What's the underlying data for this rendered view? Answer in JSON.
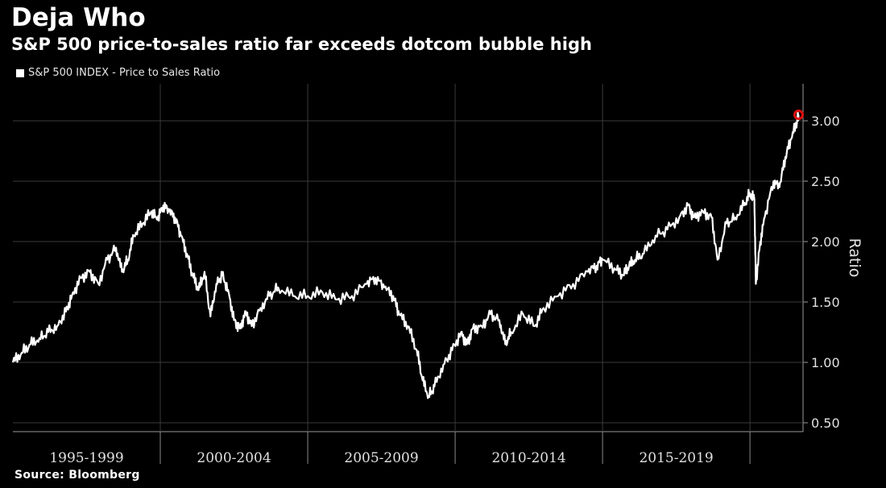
{
  "header": {
    "title": "Deja Who",
    "subtitle": "S&P 500 price-to-sales ratio far exceeds dotcom bubble high"
  },
  "legend": {
    "label": "S&P 500 INDEX - Price to Sales Ratio"
  },
  "footer": {
    "source": "Source: Bloomberg"
  },
  "colors": {
    "background": "#000000",
    "line": "#ffffff",
    "highlight": "#e01010",
    "grid": "#3a3a3a"
  },
  "chart_data": {
    "type": "line",
    "title": "Deja Who",
    "subtitle": "S&P 500 price-to-sales ratio far exceeds dotcom bubble high",
    "ylabel": "Ratio",
    "xlabel": "",
    "x_categories": [
      "1995-1999",
      "2000-2004",
      "2005-2009",
      "2010-2014",
      "2015-2019"
    ],
    "y_ticks": [
      "0.50",
      "1.00",
      "1.50",
      "2.00",
      "2.50",
      "3.00"
    ],
    "ylim": [
      0.5,
      3.3
    ],
    "xlim": [
      1995.0,
      2021.8
    ],
    "y_axis_position": "right",
    "grid": true,
    "legend_position": "top-left",
    "series": [
      {
        "name": "S&P 500 INDEX - Price to Sales Ratio",
        "x": [
          1995.0,
          1995.3,
          1995.6,
          1995.9,
          1996.2,
          1996.5,
          1996.8,
          1997.0,
          1997.3,
          1997.6,
          1997.9,
          1998.2,
          1998.5,
          1998.7,
          1998.9,
          1999.1,
          1999.4,
          1999.7,
          1999.9,
          2000.1,
          2000.3,
          2000.5,
          2000.7,
          2000.9,
          2001.1,
          2001.3,
          2001.5,
          2001.7,
          2001.9,
          2002.1,
          2002.3,
          2002.5,
          2002.7,
          2002.9,
          2003.1,
          2003.4,
          2003.7,
          2004.0,
          2004.5,
          2005.0,
          2005.5,
          2006.0,
          2006.5,
          2007.0,
          2007.3,
          2007.6,
          2007.9,
          2008.1,
          2008.4,
          2008.7,
          2008.9,
          2009.1,
          2009.3,
          2009.6,
          2009.9,
          2010.2,
          2010.4,
          2010.6,
          2010.9,
          2011.2,
          2011.5,
          2011.7,
          2011.9,
          2012.3,
          2012.7,
          2013.0,
          2013.5,
          2014.0,
          2014.5,
          2014.8,
          2015.0,
          2015.4,
          2015.7,
          2015.9,
          2016.1,
          2016.4,
          2016.8,
          2017.2,
          2017.6,
          2017.9,
          2018.1,
          2018.4,
          2018.7,
          2018.9,
          2019.2,
          2019.5,
          2019.8,
          2020.0,
          2020.15,
          2020.2,
          2020.35,
          2020.5,
          2020.8,
          2021.0,
          2021.2,
          2021.4,
          2021.6,
          2021.65
        ],
        "values": [
          1.0,
          1.08,
          1.15,
          1.2,
          1.25,
          1.3,
          1.42,
          1.55,
          1.7,
          1.75,
          1.65,
          1.85,
          1.95,
          1.75,
          1.85,
          2.05,
          2.15,
          2.25,
          2.18,
          2.3,
          2.25,
          2.2,
          2.05,
          1.9,
          1.72,
          1.6,
          1.75,
          1.38,
          1.65,
          1.72,
          1.6,
          1.35,
          1.28,
          1.42,
          1.3,
          1.45,
          1.55,
          1.62,
          1.55,
          1.55,
          1.58,
          1.52,
          1.55,
          1.65,
          1.7,
          1.62,
          1.55,
          1.4,
          1.3,
          1.1,
          0.85,
          0.72,
          0.8,
          0.98,
          1.1,
          1.25,
          1.15,
          1.28,
          1.3,
          1.4,
          1.35,
          1.15,
          1.25,
          1.4,
          1.3,
          1.45,
          1.55,
          1.65,
          1.75,
          1.8,
          1.85,
          1.78,
          1.72,
          1.8,
          1.85,
          1.9,
          2.05,
          2.1,
          2.2,
          2.3,
          2.2,
          2.25,
          2.2,
          1.85,
          2.15,
          2.2,
          2.3,
          2.4,
          2.35,
          1.65,
          2.0,
          2.2,
          2.5,
          2.45,
          2.7,
          2.85,
          3.0,
          3.05
        ]
      }
    ],
    "annotations": [
      {
        "type": "marker",
        "x": 2021.65,
        "y": 3.05,
        "color": "#e01010"
      }
    ]
  }
}
